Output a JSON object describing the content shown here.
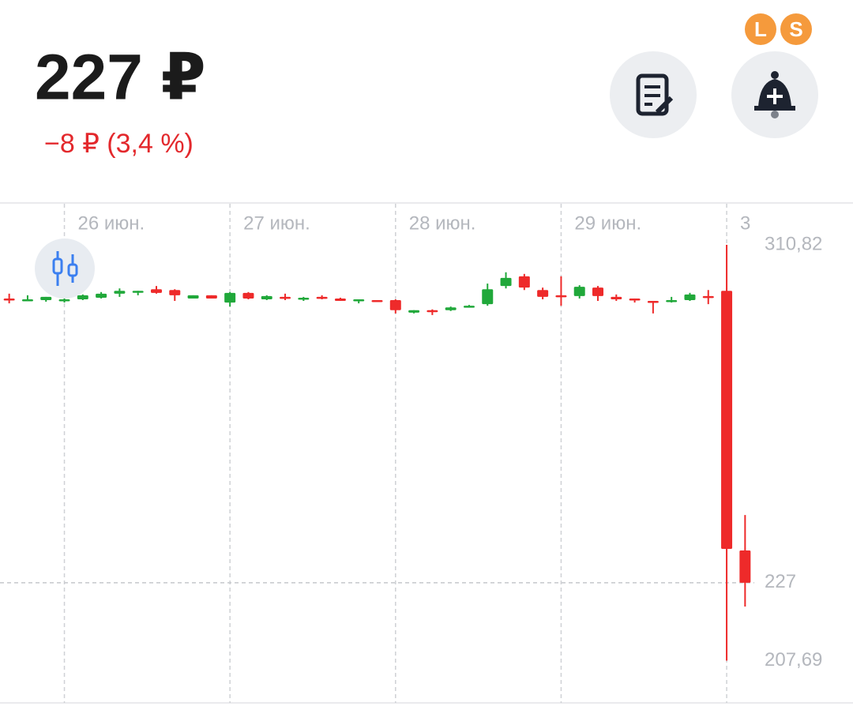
{
  "header": {
    "price": "227 ₽",
    "change": "−8 ₽ (3,4 %)",
    "badges": [
      "L",
      "S"
    ]
  },
  "chart_data": {
    "type": "candlestick",
    "x": [
      0,
      1,
      2,
      3,
      4,
      5,
      6,
      7,
      8,
      9,
      10,
      11,
      12,
      13,
      14,
      15,
      16,
      17,
      18,
      19,
      20,
      21,
      22,
      23,
      24,
      25,
      26,
      27,
      28,
      29,
      30,
      31,
      32,
      33,
      34,
      35,
      36,
      37,
      38,
      39,
      40
    ],
    "open": [
      297.5,
      297.1,
      297.1,
      296.9,
      297.3,
      297.7,
      298.7,
      299.3,
      299.8,
      299.6,
      297.5,
      298.3,
      296.5,
      298.9,
      297.3,
      297.9,
      297.5,
      297.9,
      297.5,
      297.1,
      297.1,
      297.1,
      294.0,
      294.6,
      294.6,
      295.5,
      296.1,
      300.6,
      303.0,
      299.6,
      298.3,
      298.1,
      300.2,
      297.9,
      297.5,
      296.9,
      296.9,
      297.1,
      298.1,
      299.4,
      235.0
    ],
    "high": [
      298.7,
      298.3,
      297.9,
      297.9,
      298.5,
      299.1,
      300.0,
      299.4,
      300.6,
      299.8,
      298.3,
      298.3,
      299.1,
      299.1,
      298.3,
      298.7,
      297.9,
      298.3,
      297.7,
      297.3,
      297.1,
      297.3,
      294.6,
      294.8,
      295.5,
      295.9,
      301.2,
      304.0,
      303.6,
      300.2,
      303.0,
      300.8,
      300.6,
      298.5,
      297.5,
      296.9,
      297.9,
      298.9,
      299.6,
      310.82,
      243.8
    ],
    "low": [
      296.3,
      297.1,
      296.7,
      296.5,
      297.1,
      297.5,
      297.9,
      298.3,
      298.7,
      296.9,
      297.5,
      297.5,
      295.5,
      297.3,
      297.1,
      297.1,
      296.9,
      297.3,
      296.9,
      296.3,
      296.9,
      293.8,
      293.8,
      293.4,
      294.4,
      295.3,
      295.7,
      300.0,
      299.6,
      297.3,
      295.7,
      297.5,
      296.9,
      296.9,
      296.5,
      293.8,
      296.5,
      296.9,
      296.1,
      207.69,
      221.1
    ],
    "close": [
      297.3,
      297.3,
      297.9,
      297.3,
      298.3,
      298.7,
      299.4,
      299.4,
      298.9,
      298.3,
      298.3,
      297.5,
      298.9,
      297.5,
      298.1,
      297.7,
      297.7,
      297.7,
      296.9,
      297.3,
      296.9,
      294.6,
      294.6,
      294.4,
      295.3,
      295.7,
      299.8,
      302.6,
      300.2,
      297.9,
      298.1,
      300.4,
      298.1,
      297.3,
      297.3,
      296.7,
      297.1,
      298.5,
      297.9,
      235.4,
      227
    ],
    "up_color": "#20a83a",
    "down_color": "#ee2a2a",
    "xlim": [
      -0.5,
      40.5
    ],
    "xticks": [
      {
        "value": 3,
        "label": "26 июн."
      },
      {
        "value": 12,
        "label": "27 июн."
      },
      {
        "value": 21,
        "label": "28 июн."
      },
      {
        "value": 30,
        "label": "29 июн."
      },
      {
        "value": 39,
        "label": "3"
      }
    ],
    "ylim": [
      197.2,
      321.0
    ],
    "yticks": [
      {
        "value": 310.82,
        "label": "310,82"
      },
      227,
      {
        "value": 207.69,
        "label": "207,69"
      }
    ],
    "grid": true
  }
}
